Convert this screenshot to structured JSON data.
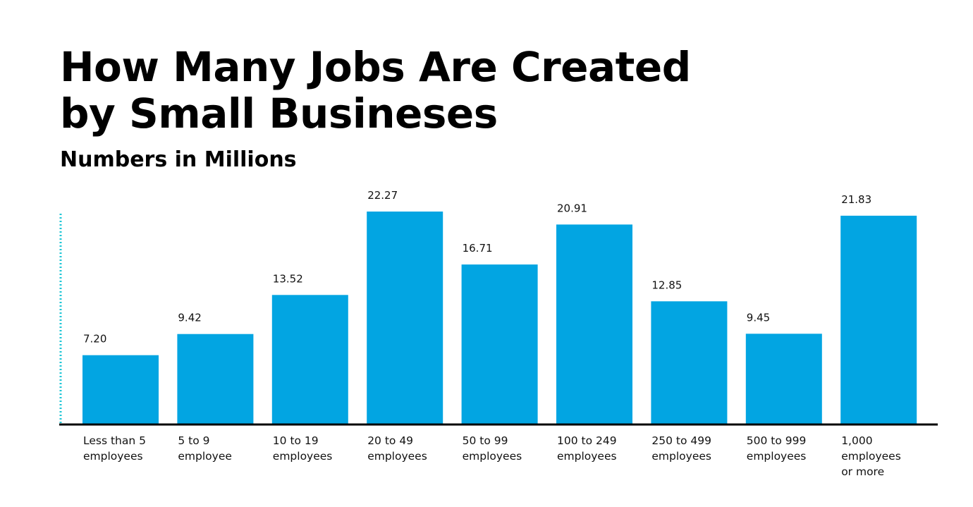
{
  "title_lines": [
    "How Many Jobs Are Created",
    "by Small Busineses"
  ],
  "subtitle": "Numbers in Millions",
  "chart_data": {
    "type": "bar",
    "title": "How Many Jobs Are Created by Small Busineses",
    "subtitle": "Numbers in Millions",
    "categories": [
      [
        "Less than 5",
        "employees"
      ],
      [
        "5 to 9",
        "employee"
      ],
      [
        "10 to 19",
        "employees"
      ],
      [
        "20 to 49",
        "employees"
      ],
      [
        "50 to 99",
        "employees"
      ],
      [
        "100 to 249",
        "employees"
      ],
      [
        "250 to 499",
        "employees"
      ],
      [
        "500 to 999",
        "employees"
      ],
      [
        "1,000",
        "employees",
        "or more"
      ]
    ],
    "values": [
      7.2,
      9.42,
      13.52,
      22.27,
      16.71,
      20.91,
      12.85,
      9.45,
      21.83
    ],
    "value_labels": [
      "7.20",
      "9.42",
      "13.52",
      "22.27",
      "16.71",
      "20.91",
      "12.85",
      "9.45",
      "21.83"
    ],
    "xlabel": "",
    "ylabel": "",
    "grid": false,
    "bar_color": "#02a5e2",
    "axis_color": "#000000",
    "accent_color": "#1fc6d6"
  }
}
